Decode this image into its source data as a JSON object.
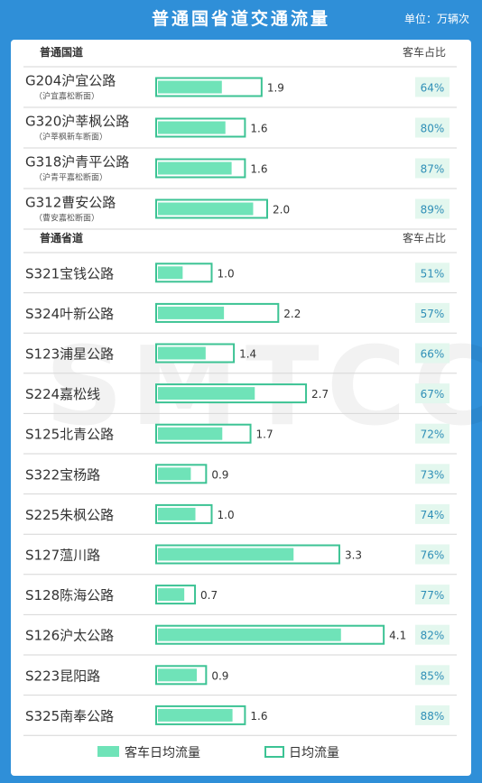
{
  "header": {
    "title": "普通国省道交通流量",
    "unit": "单位：万辆次"
  },
  "watermark": "SMTCC",
  "chart_data": {
    "type": "bar",
    "unit": "万辆次",
    "groups": [
      {
        "name": "普通国道",
        "share_header": "客车占比",
        "roads": [
          {
            "name": "G204沪宜公路",
            "section": "（沪宜嘉松断面）",
            "total": 1.9,
            "passenger_share": "64%"
          },
          {
            "name": "G320沪莘枫公路",
            "section": "（沪莘枫新车断面）",
            "total": 1.6,
            "passenger_share": "80%"
          },
          {
            "name": "G318沪青平公路",
            "section": "（沪青平嘉松断面）",
            "total": 1.6,
            "passenger_share": "87%"
          },
          {
            "name": "G312曹安公路",
            "section": "（曹安嘉松断面）",
            "total": 2.0,
            "passenger_share": "89%"
          }
        ]
      },
      {
        "name": "普通省道",
        "share_header": "客车占比",
        "roads": [
          {
            "name": "S321宝钱公路",
            "total": 1.0,
            "passenger_share": "51%"
          },
          {
            "name": "S324叶新公路",
            "total": 2.2,
            "passenger_share": "57%"
          },
          {
            "name": "S123浦星公路",
            "total": 1.4,
            "passenger_share": "66%"
          },
          {
            "name": "S224嘉松线",
            "total": 2.7,
            "passenger_share": "67%"
          },
          {
            "name": "S125北青公路",
            "total": 1.7,
            "passenger_share": "72%"
          },
          {
            "name": "S322宝杨路",
            "total": 0.9,
            "passenger_share": "73%"
          },
          {
            "name": "S225朱枫公路",
            "total": 1.0,
            "passenger_share": "74%"
          },
          {
            "name": "S127蕰川路",
            "total": 3.3,
            "passenger_share": "76%"
          },
          {
            "name": "S128陈海公路",
            "total": 0.7,
            "passenger_share": "77%"
          },
          {
            "name": "S126沪太公路",
            "total": 4.1,
            "passenger_share": "82%"
          },
          {
            "name": "S223昆阳路",
            "total": 0.9,
            "passenger_share": "85%"
          },
          {
            "name": "S325南奉公路",
            "total": 1.6,
            "passenger_share": "88%"
          }
        ]
      }
    ],
    "legend": [
      {
        "label": "客车日均流量",
        "style": "filled"
      },
      {
        "label": "日均流量",
        "style": "outline"
      }
    ],
    "colors": {
      "passenger_fill": "#6fe3b8",
      "outline": "#3cc394",
      "share_bg": "#e3f7ee",
      "share_text": "#2f8fb7",
      "header_bg": "#2f8fd8"
    }
  }
}
